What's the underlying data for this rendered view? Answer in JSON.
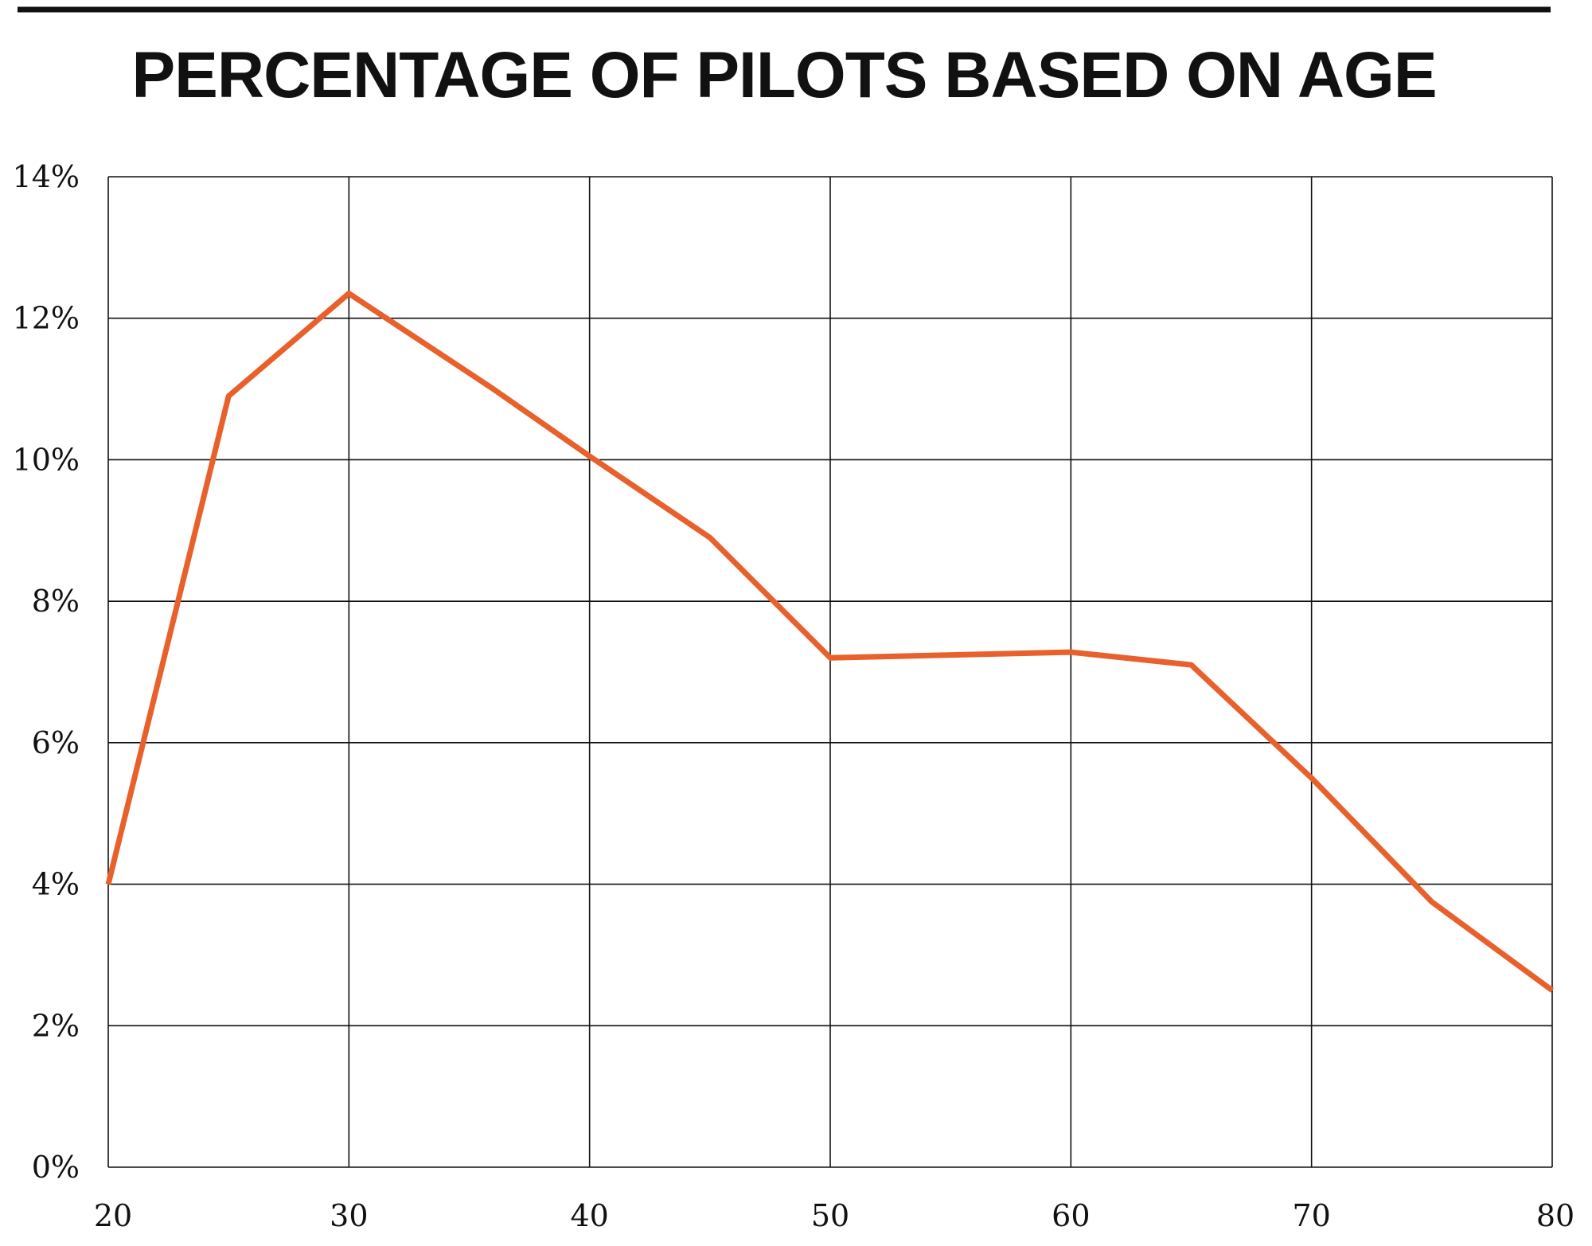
{
  "chart_data": {
    "type": "line",
    "title": "PERCENTAGE OF PILOTS BASED ON AGE",
    "xlabel": "",
    "ylabel": "",
    "x": [
      20,
      25,
      30,
      36,
      40,
      45,
      50,
      60,
      65,
      70,
      75,
      80
    ],
    "series": [
      {
        "values": [
          4.0,
          10.9,
          12.35,
          11.0,
          10.05,
          8.9,
          7.2,
          7.28,
          7.1,
          5.5,
          3.75,
          2.5
        ]
      }
    ],
    "xlim": [
      20,
      80
    ],
    "ylim": [
      0,
      14
    ],
    "x_ticks": [
      20,
      30,
      40,
      50,
      60,
      70,
      80
    ],
    "x_tick_labels": [
      "20",
      "30",
      "40",
      "50",
      "60",
      "70",
      "80"
    ],
    "y_ticks": [
      0,
      2,
      4,
      6,
      8,
      10,
      12,
      14
    ],
    "y_tick_labels": [
      "0%",
      "2%",
      "4%",
      "6%",
      "8%",
      "10%",
      "12%",
      "14%"
    ],
    "grid": true,
    "legend": "none",
    "line_color": "#e8602c",
    "grid_color": "#111111",
    "title_rule_color": "#111111"
  }
}
